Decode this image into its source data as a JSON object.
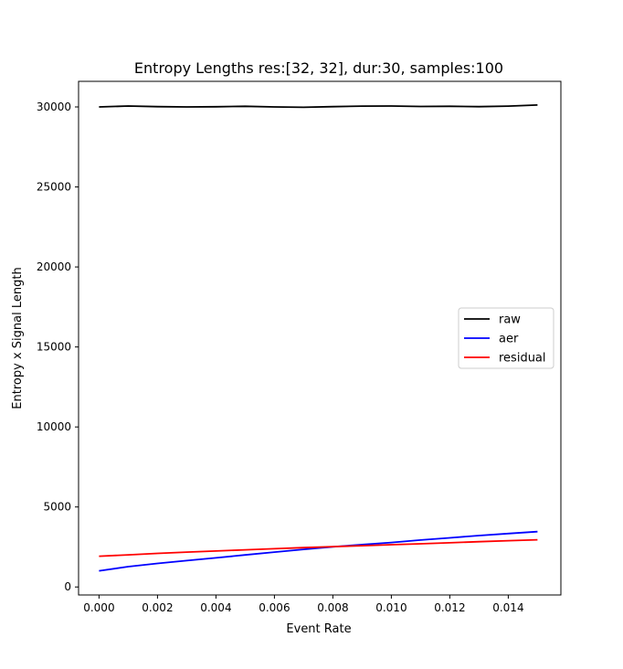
{
  "chart_data": {
    "type": "line",
    "title": "Entropy Lengths res:[32, 32], dur:30, samples:100",
    "xlabel": "Event Rate",
    "ylabel": "Entropy x Signal Length",
    "xlim": [
      -0.0007,
      0.0158
    ],
    "ylim": [
      -500,
      31600
    ],
    "xticks": [
      0.0,
      0.002,
      0.004,
      0.006,
      0.008,
      0.01,
      0.012,
      0.014
    ],
    "xtick_labels": [
      "0.000",
      "0.002",
      "0.004",
      "0.006",
      "0.008",
      "0.010",
      "0.012",
      "0.014"
    ],
    "yticks": [
      0,
      5000,
      10000,
      15000,
      20000,
      25000,
      30000
    ],
    "ytick_labels": [
      "0",
      "5000",
      "10000",
      "15000",
      "20000",
      "25000",
      "30000"
    ],
    "grid": false,
    "legend_position": "center-right",
    "x": [
      0.0,
      0.001,
      0.002,
      0.003,
      0.004,
      0.005,
      0.006,
      0.007,
      0.008,
      0.009,
      0.01,
      0.011,
      0.012,
      0.013,
      0.014,
      0.015
    ],
    "series": [
      {
        "name": "raw",
        "color": "#000000",
        "values": [
          30000,
          30060,
          30020,
          30000,
          30010,
          30040,
          30000,
          29980,
          30020,
          30050,
          30060,
          30030,
          30040,
          30020,
          30050,
          30120
        ]
      },
      {
        "name": "aer",
        "color": "#0000ff",
        "values": [
          1010,
          1270,
          1470,
          1650,
          1820,
          2000,
          2180,
          2350,
          2510,
          2650,
          2780,
          2930,
          3070,
          3210,
          3340,
          3460
        ]
      },
      {
        "name": "residual",
        "color": "#ff0000",
        "values": [
          1920,
          2010,
          2100,
          2180,
          2250,
          2320,
          2390,
          2460,
          2520,
          2580,
          2640,
          2700,
          2760,
          2830,
          2890,
          2950
        ]
      }
    ]
  }
}
